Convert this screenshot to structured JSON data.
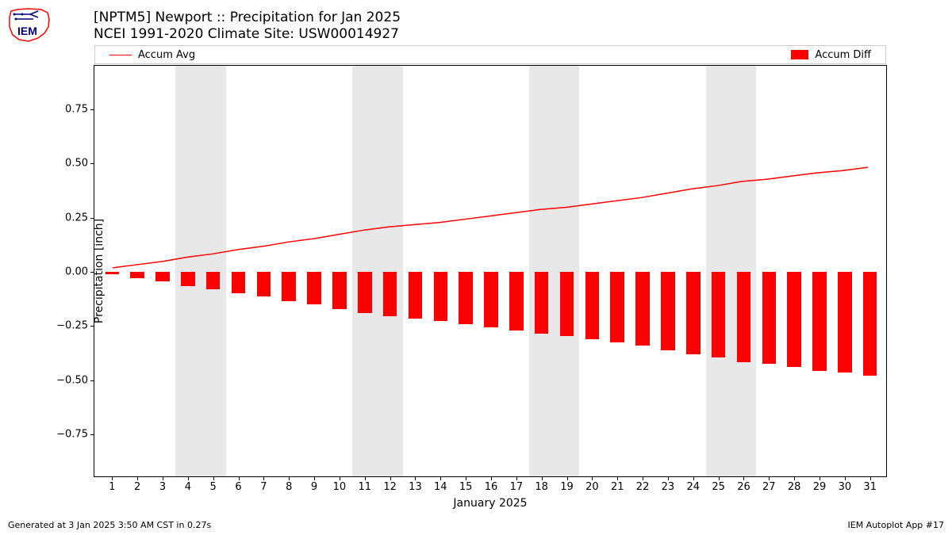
{
  "title_line1": "[NPTM5] Newport :: Precipitation for Jan 2025",
  "title_line2": "NCEI 1991-2020 Climate Site: USW00014927",
  "legend": {
    "line_label": "Accum Avg",
    "bar_label": "Accum Diff"
  },
  "footer_left": "Generated at 3 Jan 2025 3:50 AM CST in 0.27s",
  "footer_right": "IEM Autoplot App #17",
  "chart": {
    "type": "combo-line-bar",
    "xlabel": "January 2025",
    "ylabel": "Precipitation [inch]",
    "ylim": [
      -0.95,
      0.95
    ],
    "yticks": [
      -0.75,
      -0.5,
      -0.25,
      0.0,
      0.25,
      0.5,
      0.75
    ],
    "ytick_labels": [
      "−0.75",
      "−0.50",
      "−0.25",
      "0.00",
      "0.25",
      "0.50",
      "0.75"
    ],
    "xlim": [
      0.3,
      31.7
    ],
    "xticks": [
      1,
      2,
      3,
      4,
      5,
      6,
      7,
      8,
      9,
      10,
      11,
      12,
      13,
      14,
      15,
      16,
      17,
      18,
      19,
      20,
      21,
      22,
      23,
      24,
      25,
      26,
      27,
      28,
      29,
      30,
      31
    ],
    "days": [
      1,
      2,
      3,
      4,
      5,
      6,
      7,
      8,
      9,
      10,
      11,
      12,
      13,
      14,
      15,
      16,
      17,
      18,
      19,
      20,
      21,
      22,
      23,
      24,
      25,
      26,
      27,
      28,
      29,
      30,
      31
    ],
    "shaded_ranges": [
      [
        3.5,
        5.5
      ],
      [
        10.5,
        12.5
      ],
      [
        17.5,
        19.5
      ],
      [
        24.5,
        26.5
      ]
    ],
    "shade_color": "#e8e8e8",
    "line": {
      "color": "#fe0000",
      "width": 1.5,
      "values": [
        0.015,
        0.03,
        0.045,
        0.065,
        0.08,
        0.1,
        0.115,
        0.135,
        0.15,
        0.17,
        0.19,
        0.205,
        0.215,
        0.225,
        0.24,
        0.255,
        0.27,
        0.285,
        0.295,
        0.31,
        0.325,
        0.34,
        0.36,
        0.38,
        0.395,
        0.415,
        0.425,
        0.44,
        0.455,
        0.465,
        0.48
      ]
    },
    "bars": {
      "color": "#fe0000",
      "width": 0.55,
      "values": [
        -0.01,
        -0.03,
        -0.045,
        -0.065,
        -0.08,
        -0.1,
        -0.115,
        -0.135,
        -0.15,
        -0.17,
        -0.19,
        -0.205,
        -0.215,
        -0.225,
        -0.24,
        -0.255,
        -0.27,
        -0.285,
        -0.295,
        -0.31,
        -0.325,
        -0.34,
        -0.36,
        -0.38,
        -0.395,
        -0.415,
        -0.425,
        -0.44,
        -0.455,
        -0.465,
        -0.48
      ]
    },
    "background_color": "#ffffff",
    "axis_color": "#000000",
    "tick_fontsize": 13,
    "label_fontsize": 14,
    "title_fontsize": 17
  },
  "logo": {
    "outline_color": "#fe0000",
    "detail_color": "#000080",
    "text": "IEM"
  }
}
